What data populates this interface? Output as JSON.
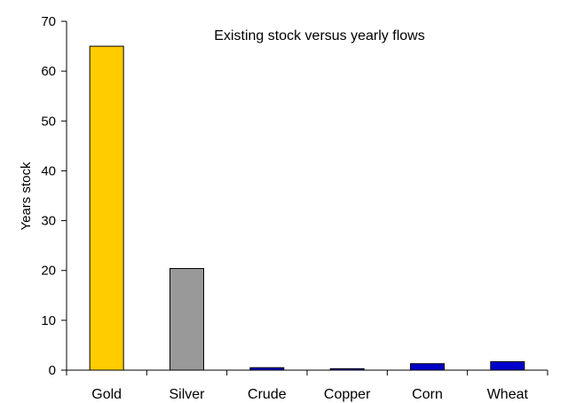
{
  "chart_data": {
    "type": "bar",
    "title": "",
    "subtitle": "Existing stock versus yearly flows",
    "xlabel": "",
    "ylabel": "Years stock",
    "categories": [
      "Gold",
      "Silver",
      "Crude",
      "Copper",
      "Corn",
      "Wheat"
    ],
    "values": [
      65,
      20.4,
      0.5,
      0.3,
      1.3,
      1.7
    ],
    "colors": [
      "#ffcc00",
      "#999999",
      "#0000cc",
      "#0000cc",
      "#0000cc",
      "#0000cc"
    ],
    "ylim": [
      0,
      70
    ],
    "yticks": [
      0,
      10,
      20,
      30,
      40,
      50,
      60,
      70
    ],
    "grid": false,
    "legend": "none"
  }
}
